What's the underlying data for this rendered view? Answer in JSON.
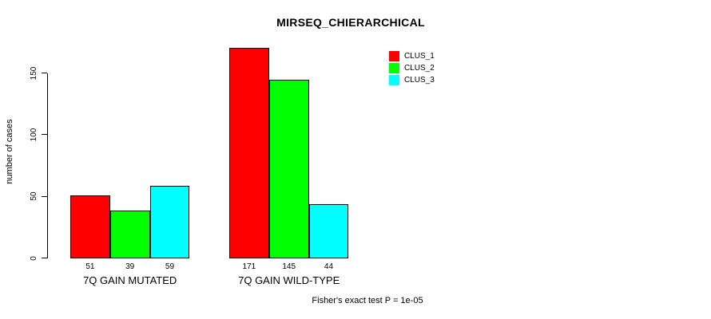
{
  "chart_data": {
    "type": "bar",
    "title": "MIRSEQ_CHIERARCHICAL",
    "ylabel": "number of cases",
    "xlabel": "",
    "footnote": "Fisher's exact test P = 1e-05",
    "categories": [
      "7Q GAIN MUTATED",
      "7Q GAIN WILD-TYPE"
    ],
    "series": [
      {
        "name": "CLUS_1",
        "color": "#FF0000",
        "values": [
          51,
          171
        ]
      },
      {
        "name": "CLUS_2",
        "color": "#00FF00",
        "values": [
          39,
          145
        ]
      },
      {
        "name": "CLUS_3",
        "color": "#00FFFF",
        "values": [
          59,
          44
        ]
      }
    ],
    "yticks": [
      0,
      50,
      100,
      150
    ],
    "ylim": [
      0,
      175
    ],
    "bar_value_labels": [
      [
        51,
        39,
        59
      ],
      [
        171,
        145,
        44
      ]
    ],
    "grid": false,
    "legend_position": "top-right",
    "axis_color": "#000000",
    "background_color": "#FFFFFF"
  }
}
